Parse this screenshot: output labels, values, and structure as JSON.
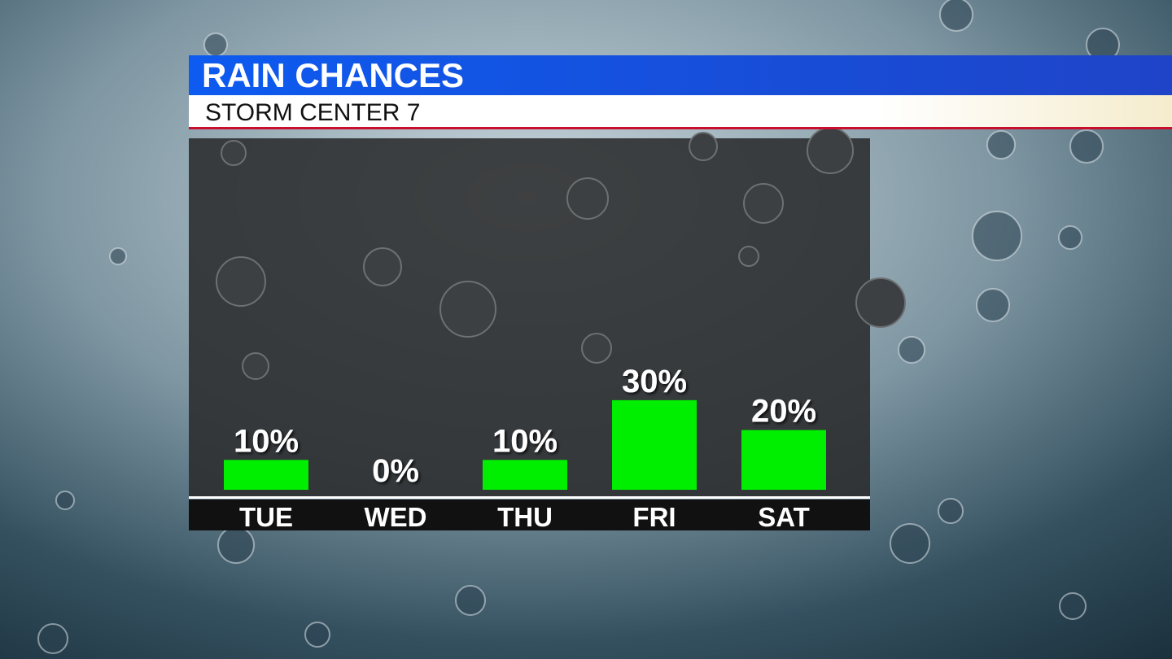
{
  "chart_data": {
    "type": "bar",
    "title": "RAIN CHANCES",
    "subtitle": "STORM CENTER 7",
    "categories": [
      "TUE",
      "WED",
      "THU",
      "FRI",
      "SAT"
    ],
    "values": [
      10,
      0,
      10,
      30,
      20
    ],
    "value_labels": [
      "10%",
      "0%",
      "10%",
      "30%",
      "20%"
    ],
    "color": "#00ee00"
  }
}
